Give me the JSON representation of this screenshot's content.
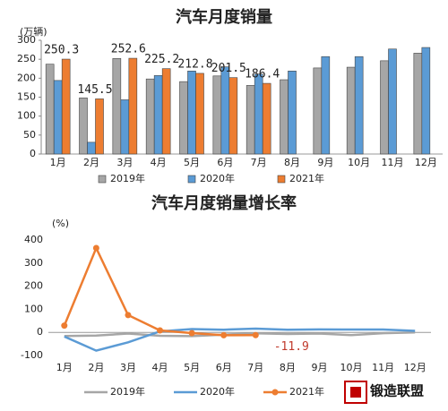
{
  "chart_data": [
    {
      "type": "bar",
      "title": "汽车月度销量",
      "y_label": "(万辆)",
      "categories": [
        "1月",
        "2月",
        "3月",
        "4月",
        "5月",
        "6月",
        "7月",
        "8月",
        "9月",
        "10月",
        "11月",
        "12月"
      ],
      "ylim": [
        0,
        300
      ],
      "yticks": [
        0,
        50,
        100,
        150,
        200,
        250,
        300
      ],
      "series": [
        {
          "name": "2019年",
          "color": "#a6a6a6",
          "values": [
            237,
            148,
            252,
            198,
            191,
            206,
            181,
            196,
            227,
            229,
            246,
            266
          ]
        },
        {
          "name": "2020年",
          "color": "#5b9bd5",
          "values": [
            194,
            31,
            143,
            207,
            219,
            230,
            211,
            219,
            257,
            257,
            277,
            281
          ]
        },
        {
          "name": "2021年",
          "color": "#ed7d31",
          "show_labels": true,
          "values": [
            250.3,
            145.5,
            252.6,
            225.2,
            212.8,
            201.5,
            186.4,
            null,
            null,
            null,
            null,
            null
          ]
        }
      ]
    },
    {
      "type": "line",
      "title": "汽车月度销量增长率",
      "y_label": "(%)",
      "categories": [
        "1月",
        "2月",
        "3月",
        "4月",
        "5月",
        "6月",
        "7月",
        "8月",
        "9月",
        "10月",
        "11月",
        "12月"
      ],
      "ylim": [
        -100,
        400
      ],
      "yticks": [
        -100,
        0,
        100,
        200,
        300,
        400
      ],
      "annotation": "-11.9",
      "series": [
        {
          "name": "2019年",
          "color": "#a6a6a6",
          "values": [
            -15.8,
            -13.8,
            -5.2,
            -14.6,
            -16.4,
            -9.7,
            -4.3,
            -6.9,
            -5.2,
            -11.7,
            -3.6,
            -0.1
          ]
        },
        {
          "name": "2020年",
          "color": "#5b9bd5",
          "values": [
            -18,
            -79,
            -43,
            4.4,
            14.5,
            11.6,
            16.4,
            11.6,
            12.8,
            12.5,
            12.6,
            6.4
          ]
        },
        {
          "name": "2021年",
          "color": "#ed7d31",
          "markers": true,
          "values": [
            29.5,
            365,
            75,
            8.6,
            -3.1,
            -12.4,
            -11.9,
            null,
            null,
            null,
            null,
            null
          ]
        }
      ]
    }
  ],
  "logo": "锻造联盟"
}
